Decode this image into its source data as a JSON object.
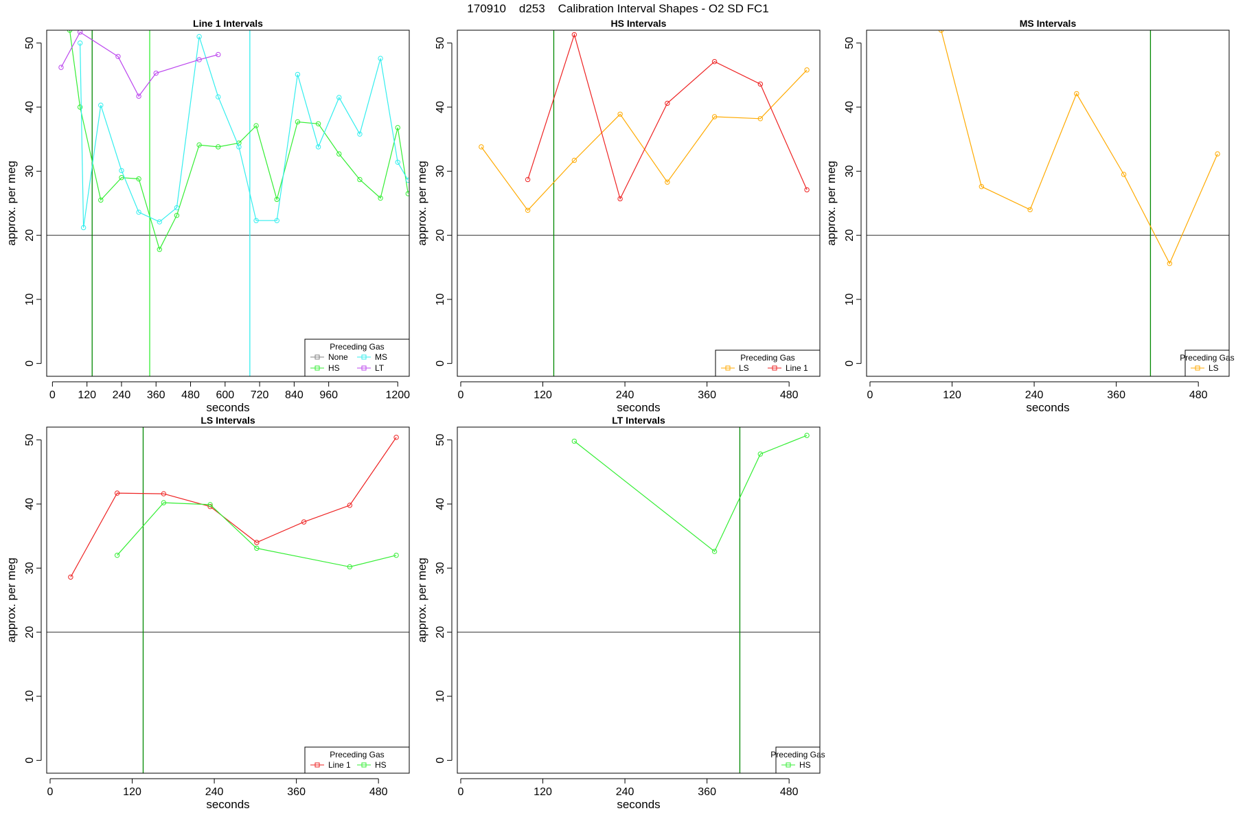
{
  "suptitle": "170910    d253    Calibration Interval Shapes - O2 SD FC1",
  "chart_data": [
    {
      "type": "line",
      "title": "Line 1 Intervals",
      "xlabel": "seconds",
      "ylabel": "approx. per meg",
      "xlim": [
        -20,
        1240
      ],
      "ylim": [
        -2,
        52
      ],
      "xticks": [
        0,
        120,
        240,
        360,
        480,
        600,
        720,
        840,
        960,
        1200
      ],
      "yticks": [
        0,
        10,
        20,
        30,
        40,
        50
      ],
      "hline": 20,
      "legend": {
        "title": "Preceding Gas",
        "position": "bottom-right",
        "columns": 2,
        "entries": [
          "None",
          "MS",
          "HS",
          "LT"
        ]
      },
      "series": [
        {
          "name": "None",
          "color": "#808080",
          "x": [],
          "y": []
        },
        {
          "name": "HS",
          "color": "#33ee33",
          "x": [
            60,
            96,
            168,
            240,
            300,
            372,
            432,
            510,
            576,
            648,
            708,
            780,
            852,
            924,
            996,
            1068,
            1140,
            1200,
            1236
          ],
          "y": [
            52,
            40,
            25.5,
            29,
            28.8,
            17.8,
            23.1,
            34.1,
            33.8,
            34.4,
            37.1,
            25.6,
            37.7,
            37.4,
            32.7,
            28.7,
            25.8,
            36.8,
            26.5
          ]
        },
        {
          "name": "MS",
          "color": "#33eeee",
          "x": [
            96,
            108,
            168,
            240,
            300,
            372,
            432,
            510,
            576,
            648,
            708,
            780,
            852,
            924,
            996,
            1068,
            1140,
            1200,
            1236
          ],
          "y": [
            50,
            21.2,
            40.3,
            30.1,
            23.6,
            22.1,
            24.3,
            51,
            41.6,
            33.8,
            22.3,
            22.3,
            45.1,
            33.8,
            41.5,
            35.8,
            47.6,
            31.4,
            28.6
          ]
        },
        {
          "name": "LT",
          "color": "#bb44ee",
          "x": [
            30,
            96,
            228,
            300,
            360,
            510,
            576
          ],
          "y": [
            46.2,
            51.7,
            47.9,
            41.7,
            45.3,
            47.4,
            48.2
          ]
        }
      ],
      "vlines": [
        {
          "x": 138,
          "color": "#008800"
        },
        {
          "x": 338,
          "color": "#33ee33"
        },
        {
          "x": 686,
          "color": "#33eeee"
        }
      ]
    },
    {
      "type": "line",
      "title": "HS Intervals",
      "xlabel": "seconds",
      "ylabel": "approx. per meg",
      "xlim": [
        -5,
        525
      ],
      "ylim": [
        -2,
        52
      ],
      "xticks": [
        0,
        120,
        240,
        360,
        480
      ],
      "yticks": [
        0,
        10,
        20,
        30,
        40,
        50
      ],
      "hline": 20,
      "legend": {
        "title": "Preceding Gas",
        "position": "bottom-right",
        "columns": 2,
        "entries": [
          "LS",
          "Line 1"
        ]
      },
      "series": [
        {
          "name": "LS",
          "color": "#ffaa00",
          "x": [
            30,
            98,
            166,
            233,
            302,
            371,
            438,
            506
          ],
          "y": [
            33.8,
            23.9,
            31.7,
            38.9,
            28.3,
            38.5,
            38.2,
            45.8
          ]
        },
        {
          "name": "Line 1",
          "color": "#ee2222",
          "x": [
            98,
            166,
            233,
            302,
            371,
            438,
            506
          ],
          "y": [
            28.7,
            51.3,
            25.7,
            40.6,
            47.1,
            43.6,
            27.1
          ]
        }
      ],
      "vlines": [
        {
          "x": 136,
          "color": "#008800"
        }
      ]
    },
    {
      "type": "line",
      "title": "MS Intervals",
      "xlabel": "seconds",
      "ylabel": "approx. per meg",
      "xlim": [
        -5,
        525
      ],
      "ylim": [
        -2,
        52
      ],
      "xticks": [
        0,
        120,
        240,
        360,
        480
      ],
      "yticks": [
        0,
        10,
        20,
        30,
        40,
        50
      ],
      "hline": 20,
      "legend": {
        "title": "Preceding Gas",
        "position": "bottom-right",
        "columns": 1,
        "entries": [
          "LS"
        ]
      },
      "series": [
        {
          "name": "LS",
          "color": "#ffaa00",
          "x": [
            104,
            163,
            234,
            302,
            371,
            438,
            508
          ],
          "y": [
            52,
            27.6,
            24,
            42.1,
            29.5,
            15.6,
            32.7
          ]
        }
      ],
      "vlines": [
        {
          "x": 410,
          "color": "#008800"
        }
      ]
    },
    {
      "type": "line",
      "title": "LS Intervals",
      "xlabel": "seconds",
      "ylabel": "approx. per meg",
      "xlim": [
        -5,
        525
      ],
      "ylim": [
        -2,
        52
      ],
      "xticks": [
        0,
        120,
        240,
        360,
        480
      ],
      "yticks": [
        0,
        10,
        20,
        30,
        40,
        50
      ],
      "hline": 20,
      "legend": {
        "title": "Preceding Gas",
        "position": "bottom-right",
        "columns": 2,
        "entries": [
          "Line 1",
          "HS"
        ]
      },
      "series": [
        {
          "name": "Line 1",
          "color": "#ee2222",
          "x": [
            30,
            98,
            166,
            234,
            302,
            371,
            438,
            506
          ],
          "y": [
            28.6,
            41.7,
            41.6,
            39.6,
            34,
            37.2,
            39.8,
            50.4
          ]
        },
        {
          "name": "HS",
          "color": "#33ee33",
          "x": [
            98,
            166,
            234,
            302,
            438,
            506
          ],
          "y": [
            32,
            40.2,
            39.9,
            33.1,
            30.2,
            32
          ]
        }
      ],
      "vlines": [
        {
          "x": 136,
          "color": "#008800"
        }
      ]
    },
    {
      "type": "line",
      "title": "LT Intervals",
      "xlabel": "seconds",
      "ylabel": "approx. per meg",
      "xlim": [
        -5,
        525
      ],
      "ylim": [
        -2,
        52
      ],
      "xticks": [
        0,
        120,
        240,
        360,
        480
      ],
      "yticks": [
        0,
        10,
        20,
        30,
        40,
        50
      ],
      "hline": 20,
      "legend": {
        "title": "Preceding Gas",
        "position": "bottom-right",
        "columns": 1,
        "entries": [
          "HS"
        ]
      },
      "series": [
        {
          "name": "HS",
          "color": "#33ee33",
          "x": [
            166,
            371,
            438,
            506
          ],
          "y": [
            49.8,
            32.6,
            47.8,
            50.7
          ]
        }
      ],
      "vlines": [
        {
          "x": 408,
          "color": "#008800"
        }
      ]
    }
  ]
}
